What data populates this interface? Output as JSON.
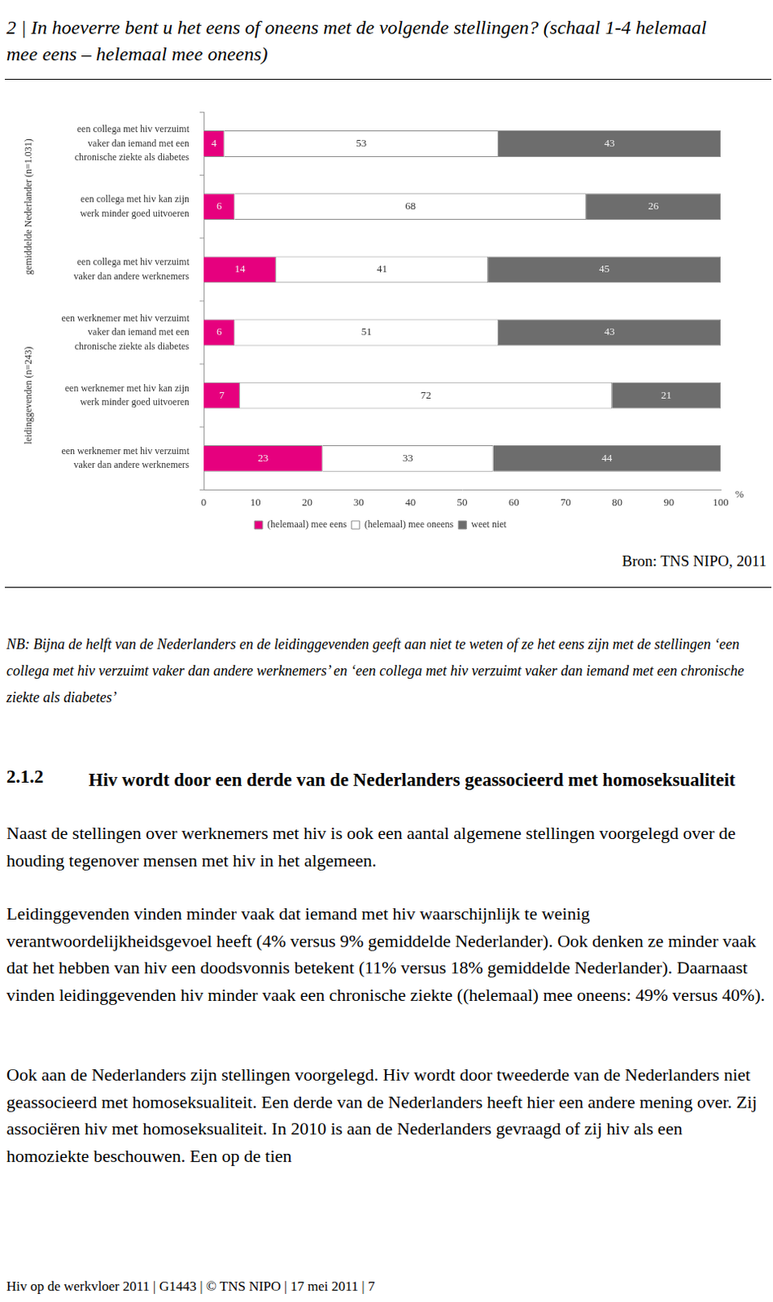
{
  "chart_data": {
    "type": "bar",
    "title": "2 | In hoeverre bent u het eens of oneens met de volgende stellingen? (schaal 1-4 helemaal mee eens – helemaal mee oneens)",
    "orientation": "horizontal",
    "stacked": true,
    "data_labels": true,
    "grid": false,
    "legend": "bottom",
    "xlabel": "%",
    "xlim": [
      0,
      100
    ],
    "xticks": [
      0,
      10,
      20,
      30,
      40,
      50,
      60,
      70,
      80,
      90,
      100
    ],
    "groups": [
      {
        "name": "gemiddelde Nederlander (n=1.031)",
        "categories": [
          "een collega met hiv verzuimt vaker dan iemand met een chronische ziekte als diabetes",
          "een collega met hiv kan zijn werk minder goed uitvoeren",
          "een collega met hiv verzuimt vaker dan andere werknemers"
        ]
      },
      {
        "name": "leidinggevenden (n=243)",
        "categories": [
          "een werknemer met hiv verzuimt vaker dan iemand met een chronische ziekte als diabetes",
          "een werknemer met hiv kan zijn werk minder goed uitvoeren",
          "een werknemer met hiv verzuimt vaker dan andere werknemers"
        ]
      }
    ],
    "series": [
      {
        "name": "(helemaal) mee eens",
        "color": "#e6007e",
        "values": [
          4,
          6,
          14,
          6,
          7,
          23
        ]
      },
      {
        "name": "(helemaal) mee oneens",
        "color": "#ffffff",
        "values": [
          53,
          68,
          41,
          51,
          72,
          33
        ]
      },
      {
        "name": "weet niet",
        "color": "#6d6d6d",
        "values": [
          43,
          26,
          45,
          43,
          21,
          44
        ]
      }
    ]
  },
  "document": {
    "source": "Bron: TNS NIPO, 2011",
    "nb": "NB: Bijna de helft van de Nederlanders en de leidinggevenden geeft aan niet te weten of ze het eens zijn met de stellingen ‘een collega met hiv verzuimt vaker dan andere werknemers’ en ‘een collega met hiv verzuimt vaker dan iemand met een chronische ziekte als diabetes’",
    "section_number": "2.1.2",
    "section_title": "Hiv wordt door een derde van de Nederlanders geassocieerd met homoseksualiteit",
    "paragraphs": [
      "Naast de stellingen over werknemers met hiv is ook een aantal algemene stellingen voorgelegd over de houding tegenover mensen met hiv in het algemeen.",
      "Leidinggevenden vinden minder vaak dat iemand met hiv waarschijnlijk te weinig verantwoordelijkheidsgevoel heeft (4% versus 9% gemiddelde Nederlander). Ook denken ze minder vaak dat het hebben van hiv een doodsvonnis betekent (11% versus 18% gemiddelde Nederlander). Daarnaast vinden leidinggevenden hiv minder vaak een chronische ziekte ((helemaal) mee oneens: 49% versus 40%).",
      "Ook aan de Nederlanders zijn stellingen voorgelegd. Hiv wordt door tweederde van de Nederlanders niet geassocieerd met homoseksualiteit. Een derde van de Nederlanders heeft hier een andere mening over. Zij associëren hiv met homoseksualiteit. In 2010 is aan de Nederlanders gevraagd of zij hiv als een homoziekte beschouwen. Een op de tien"
    ],
    "footer": "Hiv op de werkvloer 2011 | G1443 | © TNS NIPO | 17 mei 2011 | 7"
  }
}
